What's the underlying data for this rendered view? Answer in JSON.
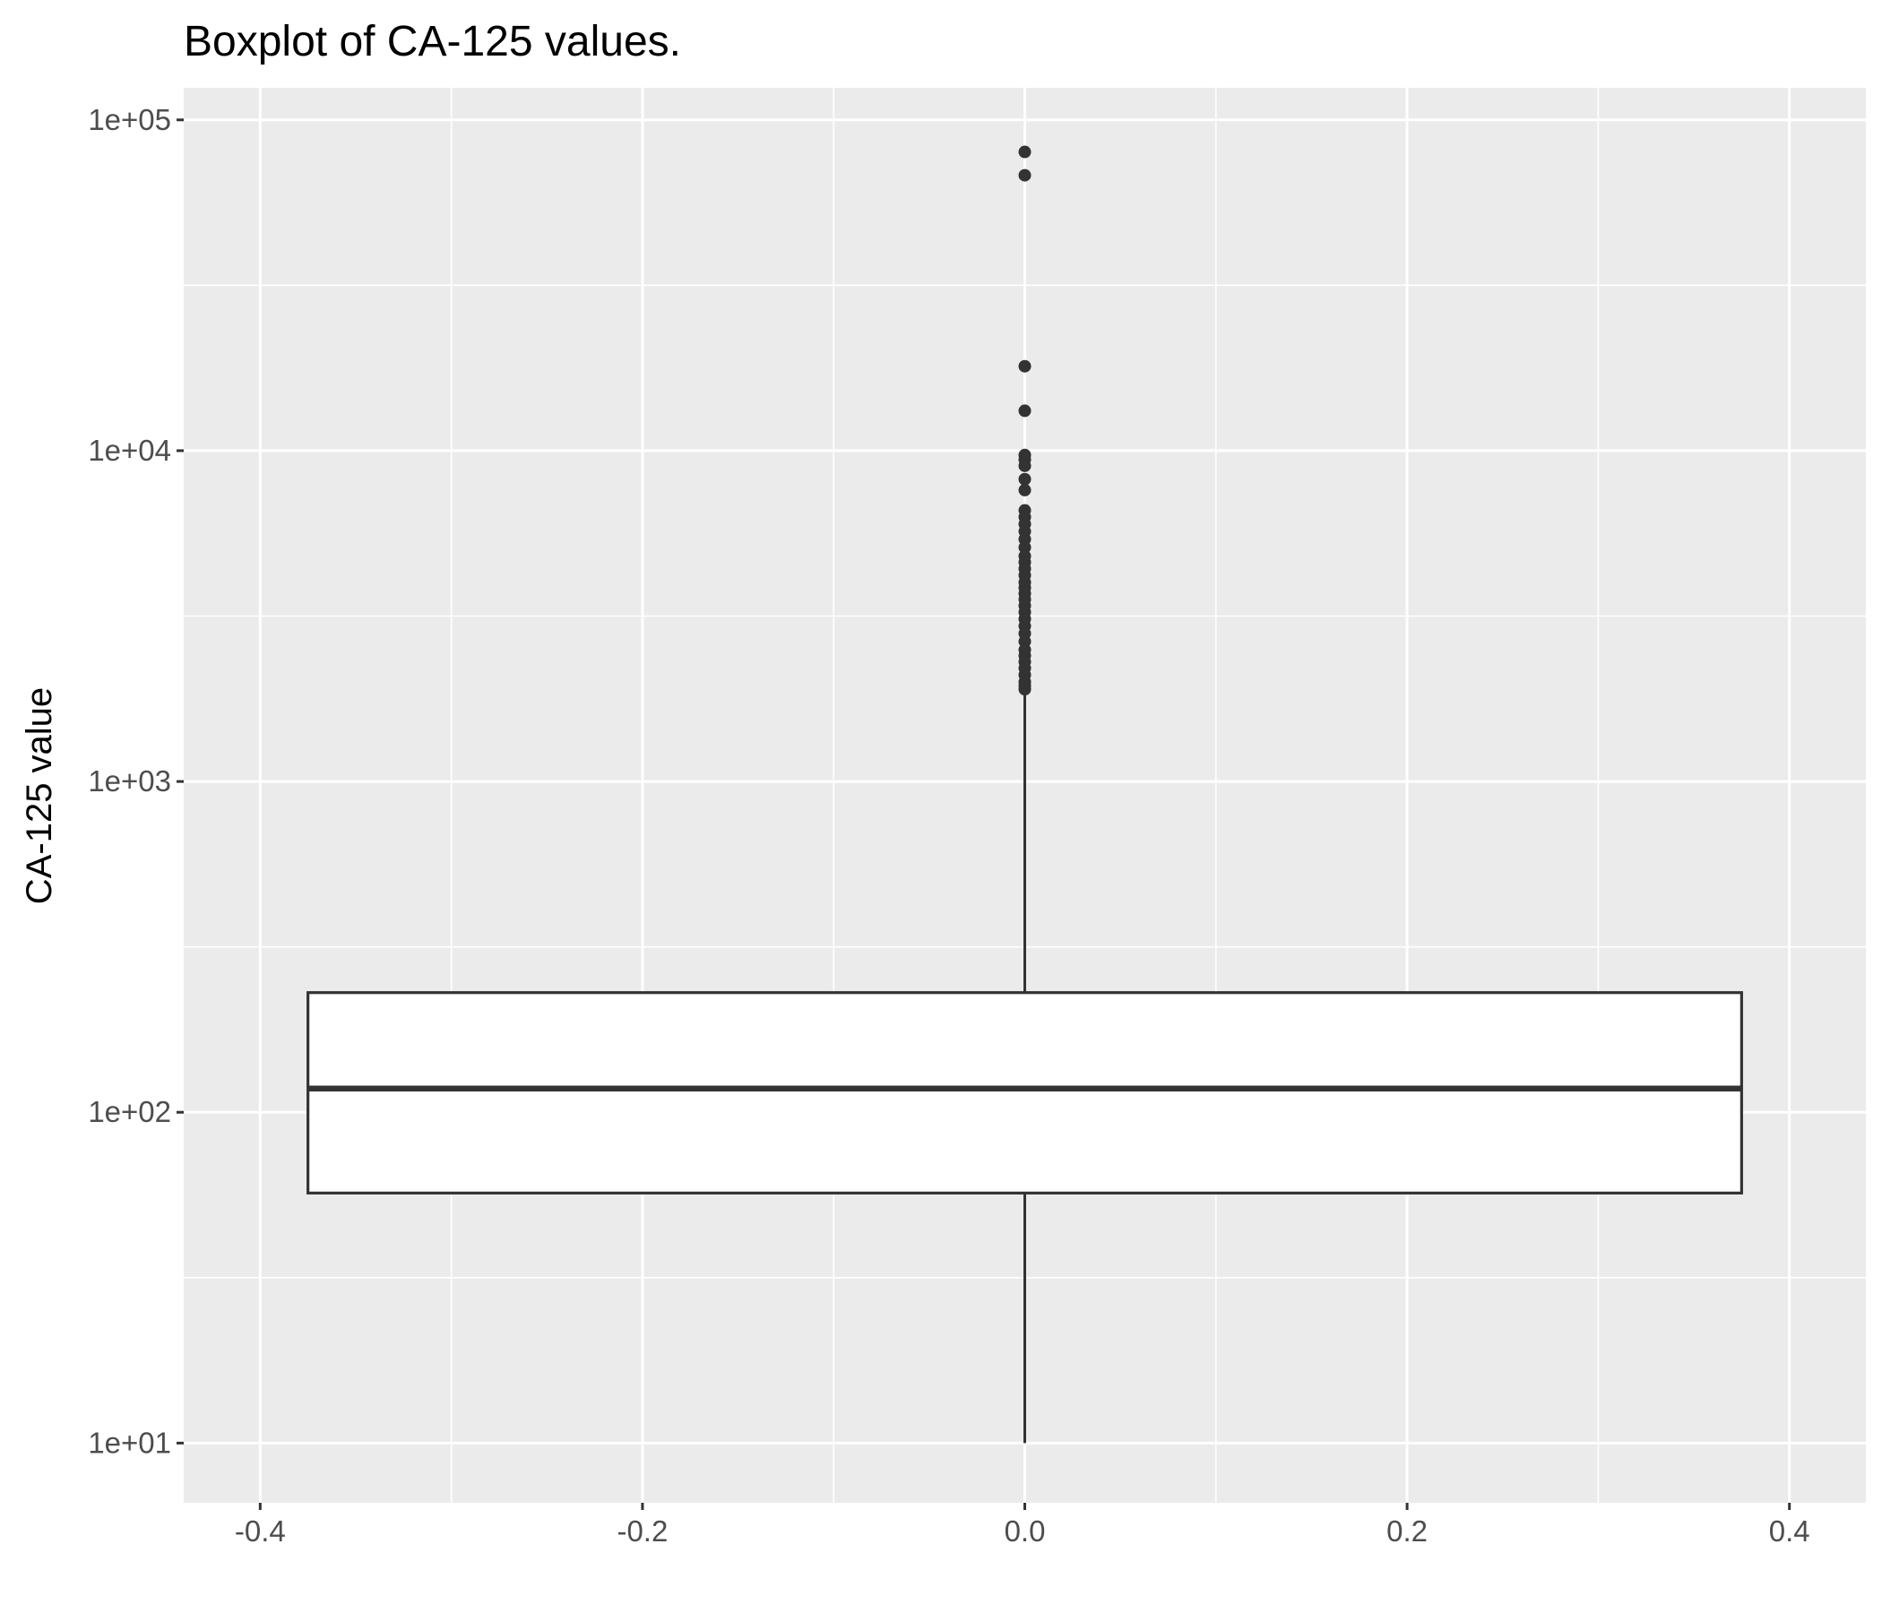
{
  "chart_data": {
    "type": "boxplot",
    "title": "Boxplot of CA-125 values.",
    "xlabel": "",
    "ylabel": "CA-125 value",
    "y_scale": "log10",
    "ylim": [
      6.6,
      125000
    ],
    "xlim": [
      -0.44,
      0.44
    ],
    "grid": true,
    "legend": "none",
    "x_ticks": [
      {
        "value": -0.4,
        "label": "-0.4"
      },
      {
        "value": -0.2,
        "label": "-0.2"
      },
      {
        "value": 0.0,
        "label": "0.0"
      },
      {
        "value": 0.2,
        "label": "0.2"
      },
      {
        "value": 0.4,
        "label": "0.4"
      }
    ],
    "y_ticks": [
      {
        "value": 10,
        "label": "1e+01"
      },
      {
        "value": 100,
        "label": "1e+02"
      },
      {
        "value": 1000,
        "label": "1e+03"
      },
      {
        "value": 10000,
        "label": "1e+04"
      },
      {
        "value": 100000,
        "label": "1e+05"
      }
    ],
    "box": {
      "x": 0.0,
      "x_left": -0.375,
      "x_right": 0.375,
      "whisker_low": 10,
      "q1": 57,
      "median": 118,
      "q3": 230,
      "whisker_high": 1850
    },
    "outliers": [
      80000,
      68000,
      18000,
      13200,
      9700,
      9400,
      9000,
      8200,
      7600,
      6600,
      6300,
      6000,
      5700,
      5400,
      5100,
      4800,
      4600,
      4400,
      4200,
      4000,
      3850,
      3700,
      3550,
      3400,
      3250,
      3100,
      2950,
      2800,
      2650,
      2500,
      2400,
      2300,
      2200,
      2100,
      2000,
      1950,
      1900
    ]
  },
  "colors": {
    "panel_background": "#EBEBEB",
    "grid_major": "#FFFFFF",
    "box_fill": "#FFFFFF",
    "box_stroke": "#333333",
    "point_fill": "#333333",
    "tick_text": "#4D4D4D"
  }
}
